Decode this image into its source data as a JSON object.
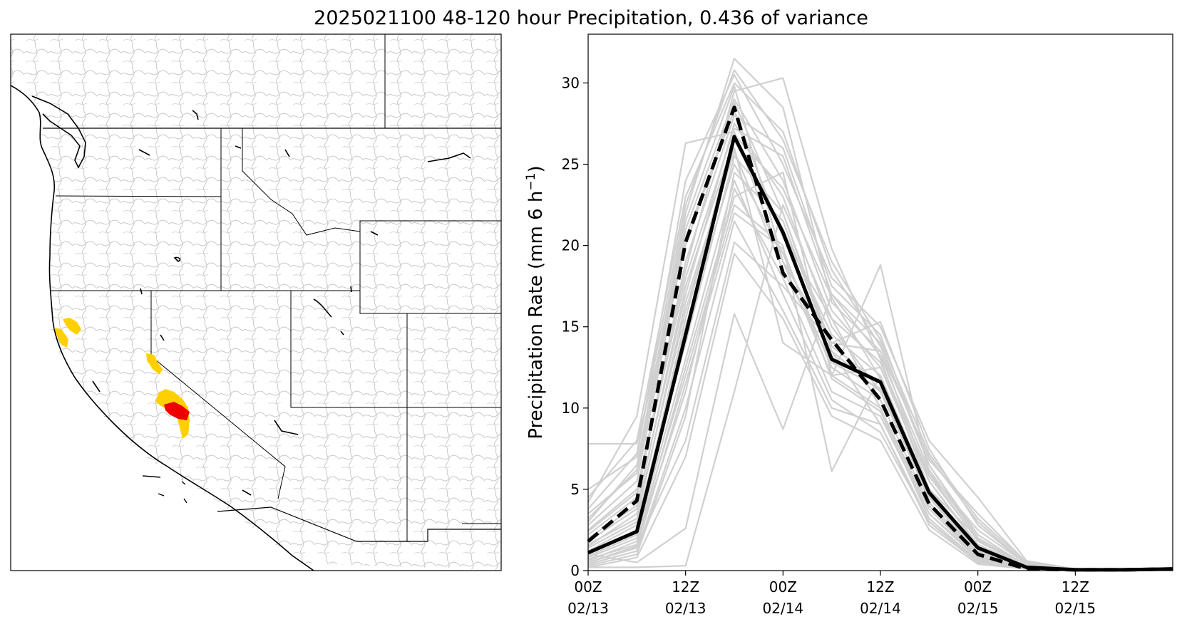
{
  "figure": {
    "title": "2025021100 48-120 hour Precipitation, 0.436 of variance"
  },
  "map": {
    "panel_name": "western-us-basins-map",
    "highlight_colors": {
      "moderate": "#ffd000",
      "high": "#ee0000"
    },
    "line_colors": {
      "basin": "#c8c8c8",
      "state": "#000000",
      "coast": "#000000"
    }
  },
  "chart_data": {
    "type": "line",
    "title": "",
    "xlabel": "",
    "ylabel": "Precipitation Rate (mm 6 h",
    "ylabel_sup": "−1",
    "ylabel_close": ")",
    "xlim": [
      0,
      36
    ],
    "ylim": [
      0,
      33
    ],
    "yticks": [
      0,
      5,
      10,
      15,
      20,
      25,
      30
    ],
    "xticks": [
      {
        "x": 0,
        "line1": "00Z",
        "line2": "02/13"
      },
      {
        "x": 6,
        "line1": "12Z",
        "line2": "02/13"
      },
      {
        "x": 12,
        "line1": "00Z",
        "line2": "02/14"
      },
      {
        "x": 18,
        "line1": "12Z",
        "line2": "02/14"
      },
      {
        "x": 24,
        "line1": "00Z",
        "line2": "02/15"
      },
      {
        "x": 30,
        "line1": "12Z",
        "line2": "02/15"
      }
    ],
    "x": [
      0,
      3,
      6,
      9,
      12,
      15,
      18,
      21,
      24,
      27,
      30,
      33,
      36
    ],
    "series": [
      {
        "name": "mean",
        "style": "solid",
        "color": "#000000",
        "values": [
          1.1,
          2.4,
          14.5,
          26.7,
          20.8,
          13.0,
          11.6,
          4.8,
          1.4,
          0.2,
          0.05,
          0.05,
          0.1
        ]
      },
      {
        "name": "control",
        "style": "dashed",
        "color": "#000000",
        "values": [
          1.8,
          4.3,
          20.2,
          28.5,
          18.3,
          14.2,
          10.5,
          4.1,
          1.0,
          0.1,
          0.05,
          0.05,
          0.1
        ]
      }
    ],
    "ensemble": {
      "color": "#d0d0d0",
      "members": [
        [
          7.8,
          7.8,
          20.0,
          28.8,
          22.0,
          13.5,
          11.0,
          5.0,
          2.0,
          0.3,
          0.1,
          0.05,
          0.1
        ],
        [
          4.2,
          9.5,
          26.3,
          27.0,
          19.0,
          12.0,
          12.5,
          6.0,
          2.5,
          0.4,
          0.1,
          0.05,
          0.1
        ],
        [
          0.2,
          0.2,
          0.3,
          11.0,
          22.5,
          15.5,
          10.0,
          3.5,
          0.8,
          0.1,
          0.05,
          0.05,
          0.1
        ],
        [
          3.0,
          6.5,
          22.0,
          31.5,
          28.5,
          16.5,
          13.5,
          7.0,
          3.0,
          0.4,
          0.1,
          0.05,
          0.1
        ],
        [
          1.0,
          0.5,
          2.6,
          15.8,
          8.7,
          17.0,
          14.0,
          6.5,
          2.0,
          0.3,
          0.1,
          0.05,
          0.1
        ],
        [
          0.5,
          1.5,
          8.0,
          20.2,
          17.5,
          14.0,
          13.5,
          5.5,
          1.5,
          0.2,
          0.05,
          0.05,
          0.1
        ],
        [
          2.5,
          5.0,
          18.5,
          29.5,
          30.3,
          19.8,
          13.0,
          5.0,
          1.0,
          0.2,
          0.05,
          0.05,
          0.1
        ],
        [
          0.8,
          2.0,
          12.0,
          22.5,
          20.0,
          6.1,
          12.0,
          4.5,
          1.2,
          0.2,
          0.05,
          0.05,
          0.1
        ],
        [
          1.5,
          3.5,
          16.0,
          26.0,
          14.0,
          12.0,
          18.8,
          6.0,
          1.8,
          0.3,
          0.05,
          0.05,
          0.1
        ],
        [
          5.0,
          7.0,
          24.0,
          30.5,
          25.0,
          18.0,
          15.0,
          8.0,
          4.5,
          0.6,
          0.1,
          0.05,
          0.1
        ],
        [
          0.3,
          1.0,
          9.5,
          24.5,
          21.5,
          13.5,
          9.0,
          3.0,
          0.5,
          0.1,
          0.05,
          0.05,
          0.1
        ],
        [
          2.0,
          4.0,
          17.0,
          27.5,
          23.0,
          15.0,
          11.0,
          4.5,
          1.0,
          0.2,
          0.05,
          0.05,
          0.1
        ],
        [
          1.2,
          2.8,
          15.0,
          25.0,
          19.5,
          12.5,
          10.5,
          4.0,
          0.9,
          0.1,
          0.05,
          0.05,
          0.1
        ],
        [
          3.5,
          6.0,
          21.0,
          29.0,
          24.0,
          16.0,
          12.5,
          5.5,
          1.6,
          0.3,
          0.1,
          0.05,
          0.1
        ],
        [
          0.6,
          1.8,
          11.0,
          23.5,
          18.0,
          11.0,
          9.5,
          3.5,
          0.7,
          0.1,
          0.05,
          0.05,
          0.1
        ],
        [
          2.2,
          4.5,
          19.0,
          28.0,
          26.0,
          17.5,
          14.5,
          6.5,
          2.2,
          0.3,
          0.1,
          0.05,
          0.1
        ],
        [
          0.9,
          2.2,
          13.0,
          24.0,
          17.0,
          10.5,
          8.5,
          3.0,
          0.6,
          0.1,
          0.05,
          0.05,
          0.1
        ],
        [
          1.8,
          3.8,
          17.5,
          26.5,
          21.0,
          14.5,
          12.0,
          5.0,
          1.3,
          0.2,
          0.05,
          0.05,
          0.1
        ],
        [
          4.5,
          8.0,
          23.0,
          30.0,
          27.0,
          18.5,
          13.8,
          6.8,
          3.5,
          0.5,
          0.1,
          0.05,
          0.1
        ],
        [
          0.4,
          1.2,
          10.0,
          21.5,
          16.0,
          10.0,
          9.0,
          2.8,
          0.5,
          0.1,
          0.05,
          0.05,
          0.1
        ],
        [
          1.4,
          3.0,
          14.0,
          25.5,
          22.0,
          13.8,
          11.5,
          4.8,
          1.1,
          0.2,
          0.05,
          0.05,
          0.1
        ],
        [
          2.8,
          5.5,
          20.5,
          28.3,
          20.5,
          15.5,
          12.8,
          5.8,
          1.9,
          0.3,
          0.05,
          0.05,
          0.1
        ],
        [
          0.7,
          1.6,
          12.5,
          23.0,
          24.5,
          12.0,
          10.0,
          3.8,
          0.8,
          0.1,
          0.05,
          0.05,
          0.1
        ],
        [
          3.2,
          6.2,
          21.5,
          29.8,
          19.0,
          14.0,
          15.3,
          7.5,
          2.8,
          0.4,
          0.1,
          0.05,
          0.1
        ],
        [
          1.1,
          2.5,
          15.5,
          26.8,
          23.5,
          16.8,
          11.8,
          4.2,
          1.0,
          0.2,
          0.05,
          0.05,
          0.1
        ],
        [
          0.2,
          0.8,
          7.0,
          19.5,
          15.5,
          9.5,
          8.0,
          2.5,
          0.4,
          0.1,
          0.05,
          0.05,
          0.1
        ],
        [
          2.4,
          4.8,
          18.0,
          27.2,
          25.5,
          17.0,
          13.2,
          6.2,
          2.0,
          0.3,
          0.05,
          0.05,
          0.1
        ],
        [
          1.6,
          3.2,
          16.5,
          25.8,
          18.5,
          12.8,
          11.2,
          4.6,
          1.2,
          0.2,
          0.05,
          0.05,
          0.1
        ],
        [
          3.8,
          7.2,
          22.5,
          30.8,
          26.5,
          19.0,
          14.2,
          7.2,
          3.2,
          0.5,
          0.1,
          0.05,
          0.1
        ],
        [
          0.5,
          1.4,
          11.5,
          22.0,
          19.8,
          11.8,
          9.8,
          3.2,
          0.6,
          0.1,
          0.05,
          0.05,
          0.1
        ]
      ]
    }
  }
}
